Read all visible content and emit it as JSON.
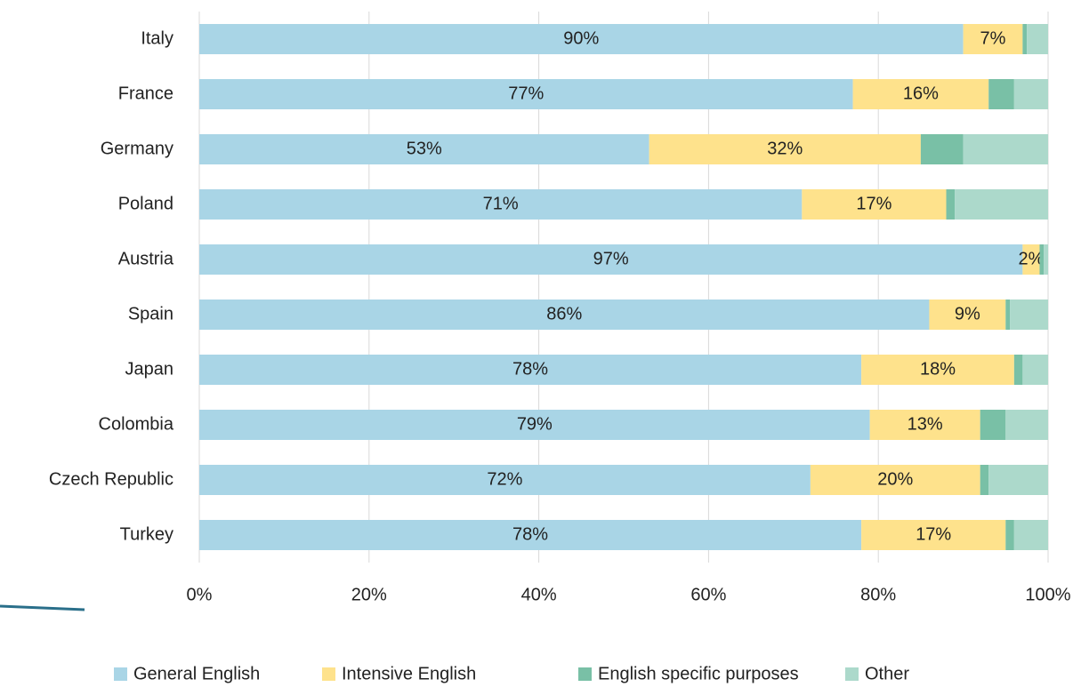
{
  "chart_data": {
    "type": "bar",
    "orientation": "horizontal",
    "stacked": true,
    "categories": [
      "Italy",
      "France",
      "Germany",
      "Poland",
      "Austria",
      "Spain",
      "Japan",
      "Colombia",
      "Czech Republic",
      "Turkey"
    ],
    "series": [
      {
        "name": "General English",
        "color": "#a9d5e6",
        "values": [
          90,
          77,
          53,
          71,
          97,
          86,
          78,
          79,
          72,
          78
        ],
        "value_labels": [
          "90%",
          "77%",
          "53%",
          "71%",
          "97%",
          "86%",
          "78%",
          "79%",
          "72%",
          "78%"
        ]
      },
      {
        "name": "Intensive English",
        "color": "#fee28c",
        "values": [
          7,
          16,
          32,
          17,
          2,
          9,
          18,
          13,
          20,
          17
        ],
        "value_labels": [
          "7%",
          "16%",
          "32%",
          "17%",
          "2%",
          "9%",
          "18%",
          "13%",
          "20%",
          "17%"
        ]
      },
      {
        "name": "English specific purposes",
        "color": "#79c0a6",
        "values": [
          0.5,
          3,
          5,
          1,
          0.5,
          0.5,
          1,
          3,
          1,
          1
        ]
      },
      {
        "name": "Other",
        "color": "#acd9cb",
        "values": [
          2.5,
          4,
          10,
          11,
          0.5,
          4.5,
          3,
          5,
          7,
          4
        ]
      }
    ],
    "xlim": [
      0,
      100
    ],
    "xticks": [
      {
        "value": 0,
        "label": "0%"
      },
      {
        "value": 20,
        "label": "20%"
      },
      {
        "value": 40,
        "label": "40%"
      },
      {
        "value": 60,
        "label": "60%"
      },
      {
        "value": 80,
        "label": "80%"
      },
      {
        "value": 100,
        "label": "100%"
      }
    ],
    "grid": true,
    "legend": "bottom"
  }
}
